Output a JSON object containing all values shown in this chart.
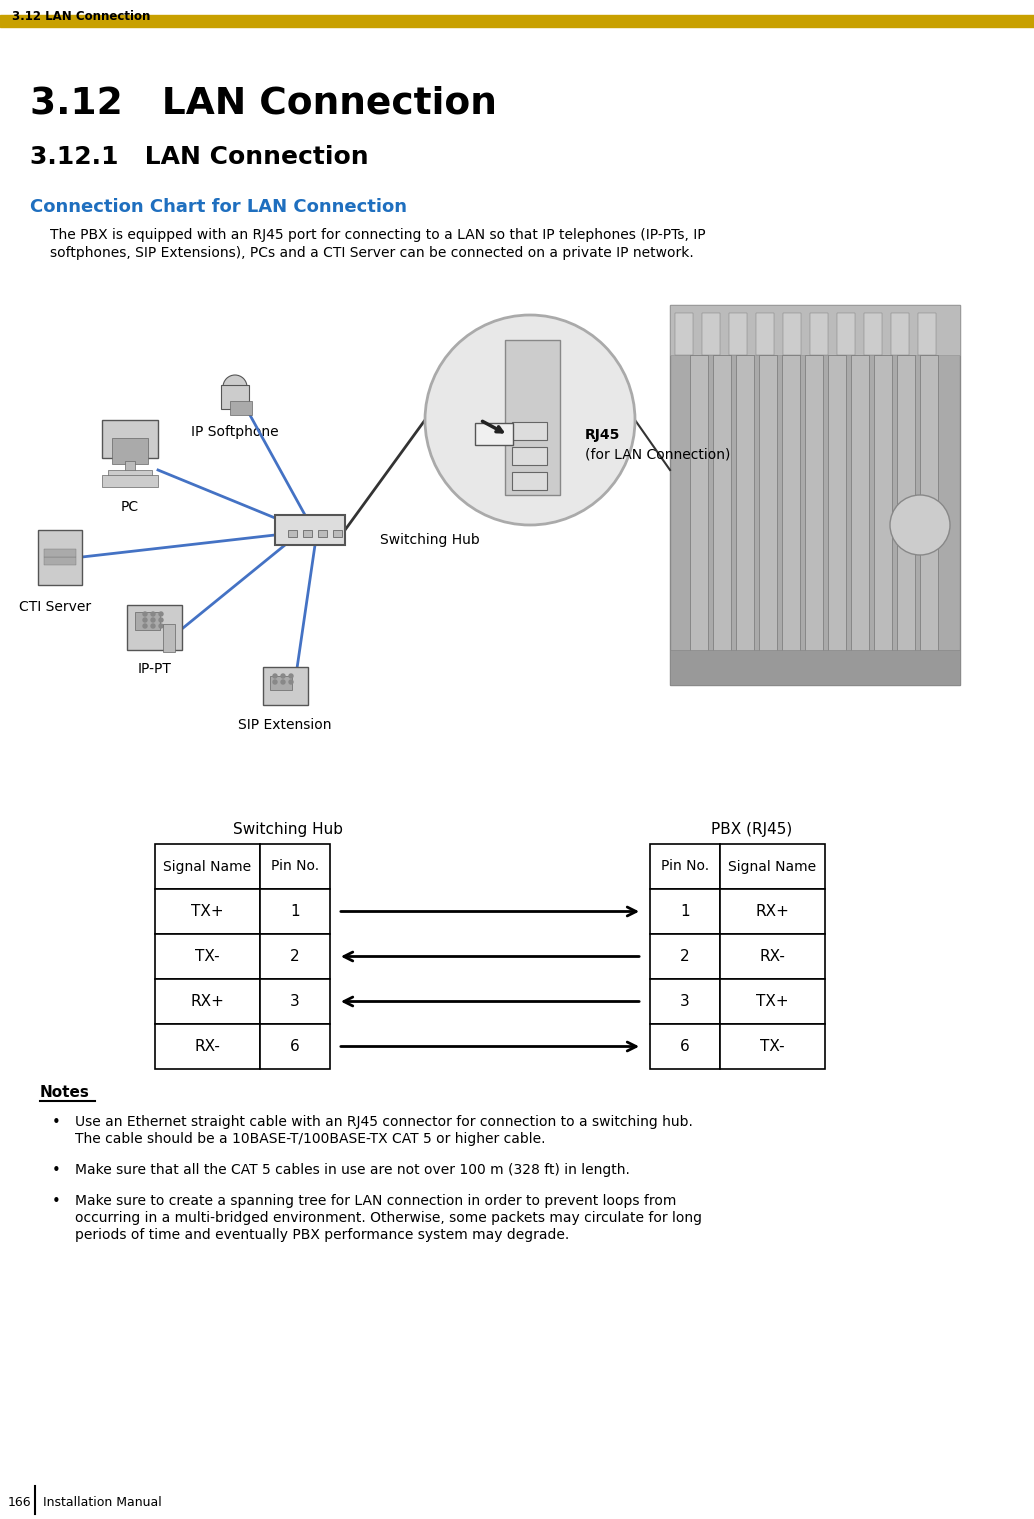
{
  "page_header": "3.12 LAN Connection",
  "header_bar_color": "#C8A000",
  "main_title": "3.12   LAN Connection",
  "section_title": "3.12.1   LAN Connection",
  "subsection_title": "Connection Chart for LAN Connection",
  "subsection_color": "#1F6FBF",
  "intro_line1": "The PBX is equipped with an RJ45 port for connecting to a LAN so that IP telephones (IP-PTs, IP",
  "intro_line2": "softphones, SIP Extensions), PCs and a CTI Server can be connected on a private IP network.",
  "notes_title": "Notes",
  "notes": [
    "Use an Ethernet straight cable with an RJ45 connector for connection to a switching hub. The cable should be a 10BASE-T/100BASE-TX CAT 5 or higher cable.",
    "Make sure that all the CAT 5 cables in use are not over 100 m (328 ft) in length.",
    "Make sure to create a spanning tree for LAN connection in order to prevent loops from occurring in a multi-bridged environment. Otherwise, some packets may circulate for long periods of time and eventually PBX performance system may degrade."
  ],
  "table_switching_hub_label": "Switching Hub",
  "table_pbx_label": "PBX (RJ45)",
  "table_rows": [
    {
      "sh_signal": "TX+",
      "sh_pin": "1",
      "pbx_pin": "1",
      "pbx_signal": "RX+",
      "arrow_dir": "right"
    },
    {
      "sh_signal": "TX-",
      "sh_pin": "2",
      "pbx_pin": "2",
      "pbx_signal": "RX-",
      "arrow_dir": "left"
    },
    {
      "sh_signal": "RX+",
      "sh_pin": "3",
      "pbx_pin": "3",
      "pbx_signal": "TX+",
      "arrow_dir": "left"
    },
    {
      "sh_signal": "RX-",
      "sh_pin": "6",
      "pbx_pin": "6",
      "pbx_signal": "TX-",
      "arrow_dir": "right"
    }
  ],
  "footer_page": "166",
  "footer_text": "Installation Manual",
  "bg_color": "#FFFFFF",
  "text_color": "#000000",
  "table_header_col1_sh": "Signal Name",
  "table_header_col2_sh": "Pin No.",
  "table_header_col1_pbx": "Pin No.",
  "table_header_col2_pbx": "Signal Name",
  "label_rj45": "RJ45",
  "label_rj45_sub": "(for LAN Connection)",
  "label_switching_hub": "Switching Hub",
  "label_pc": "PC",
  "label_cti": "CTI Server",
  "label_ip_softphone": "IP Softphone",
  "label_ip_pt": "IP-PT",
  "label_sip": "SIP Extension"
}
